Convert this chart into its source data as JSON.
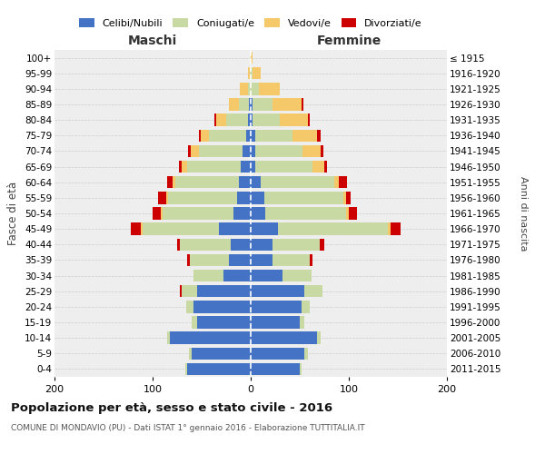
{
  "age_groups": [
    "0-4",
    "5-9",
    "10-14",
    "15-19",
    "20-24",
    "25-29",
    "30-34",
    "35-39",
    "40-44",
    "45-49",
    "50-54",
    "55-59",
    "60-64",
    "65-69",
    "70-74",
    "75-79",
    "80-84",
    "85-89",
    "90-94",
    "95-99",
    "100+"
  ],
  "birth_years": [
    "2011-2015",
    "2006-2010",
    "2001-2005",
    "1996-2000",
    "1991-1995",
    "1986-1990",
    "1981-1985",
    "1976-1980",
    "1971-1975",
    "1966-1970",
    "1961-1965",
    "1956-1960",
    "1951-1955",
    "1946-1950",
    "1941-1945",
    "1936-1940",
    "1931-1935",
    "1926-1930",
    "1921-1925",
    "1916-1920",
    "≤ 1915"
  ],
  "colors": {
    "celibi": "#4472C4",
    "coniugati": "#C8D9A4",
    "vedovi": "#F5C96A",
    "divorziati": "#CC0000"
  },
  "maschi": {
    "celibi": [
      65,
      60,
      82,
      55,
      58,
      55,
      28,
      22,
      20,
      32,
      18,
      14,
      12,
      10,
      8,
      5,
      3,
      2,
      0,
      0,
      0
    ],
    "coniugati": [
      2,
      3,
      3,
      5,
      8,
      15,
      30,
      40,
      52,
      78,
      72,
      70,
      65,
      55,
      45,
      38,
      22,
      10,
      3,
      1,
      0
    ],
    "vedovi": [
      0,
      0,
      0,
      0,
      0,
      0,
      0,
      0,
      0,
      2,
      2,
      2,
      3,
      5,
      8,
      8,
      10,
      10,
      8,
      2,
      0
    ],
    "divorziati": [
      0,
      0,
      0,
      0,
      0,
      2,
      0,
      3,
      3,
      10,
      8,
      8,
      5,
      3,
      3,
      2,
      2,
      0,
      0,
      0,
      0
    ]
  },
  "femmine": {
    "celibi": [
      50,
      55,
      68,
      50,
      52,
      55,
      32,
      22,
      22,
      28,
      15,
      14,
      10,
      5,
      5,
      5,
      2,
      2,
      0,
      0,
      0
    ],
    "coniugati": [
      2,
      3,
      3,
      5,
      8,
      18,
      30,
      38,
      48,
      112,
      82,
      80,
      75,
      58,
      48,
      38,
      28,
      20,
      8,
      2,
      0
    ],
    "vedovi": [
      0,
      0,
      0,
      0,
      0,
      0,
      0,
      0,
      0,
      3,
      3,
      3,
      5,
      12,
      18,
      25,
      28,
      30,
      22,
      8,
      2
    ],
    "divorziati": [
      0,
      0,
      0,
      0,
      0,
      0,
      0,
      3,
      5,
      10,
      8,
      5,
      8,
      3,
      3,
      3,
      2,
      2,
      0,
      0,
      0
    ]
  },
  "title": "Popolazione per età, sesso e stato civile - 2016",
  "subtitle": "COMUNE DI MONDAVIO (PU) - Dati ISTAT 1° gennaio 2016 - Elaborazione TUTTITALIA.IT",
  "ylabel_left": "Fasce di età",
  "ylabel_right": "Anni di nascita",
  "xlabel_maschi": "Maschi",
  "xlabel_femmine": "Femmine",
  "xlim": 200,
  "legend_labels": [
    "Celibi/Nubili",
    "Coniugati/e",
    "Vedovi/e",
    "Divorziati/e"
  ],
  "background_color": "#ffffff",
  "plot_bg_color": "#eeeeee",
  "grid_color": "#cccccc"
}
